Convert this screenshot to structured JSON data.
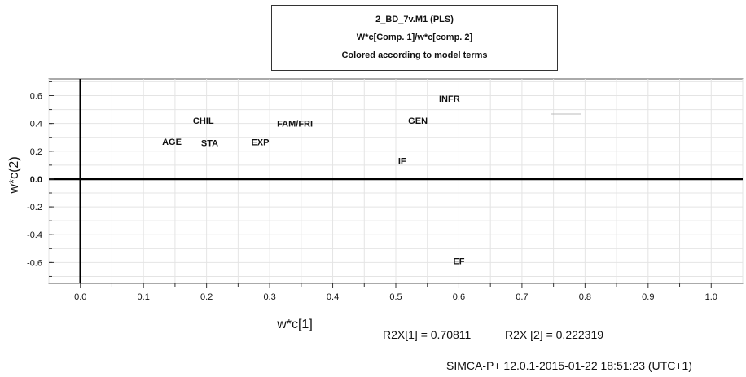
{
  "chart_data": {
    "type": "scatter",
    "title": "2_BD_7v.M1 (PLS)",
    "subtitle": "W*c[Comp. 1]/w*c[comp. 2]",
    "subtitle2": "Colored according to model terms",
    "xlabel": "w*c[1]",
    "ylabel": "w*c(2)",
    "xlim": [
      -0.05,
      1.05
    ],
    "ylim": [
      -0.75,
      0.72
    ],
    "x_ticks": [
      "0.0",
      "0.1",
      "0.2",
      "0.3",
      "0.4",
      "0.5",
      "0.6",
      "0.7",
      "0.8",
      "0.9",
      "1.0"
    ],
    "x_tick_values": [
      0.0,
      0.1,
      0.2,
      0.3,
      0.4,
      0.5,
      0.6,
      0.7,
      0.8,
      0.9,
      1.0
    ],
    "y_ticks": [
      "0.6",
      "0.4",
      "0.2",
      "0.0",
      "-0.2",
      "-0.4",
      "-0.6"
    ],
    "y_tick_values": [
      0.6,
      0.4,
      0.2,
      0.0,
      -0.2,
      -0.4,
      -0.6
    ],
    "grid": true,
    "points": [
      {
        "label": "AGE",
        "x": 0.145,
        "y": 0.27
      },
      {
        "label": "CHIL",
        "x": 0.195,
        "y": 0.42
      },
      {
        "label": "STA",
        "x": 0.205,
        "y": 0.26
      },
      {
        "label": "EXP",
        "x": 0.285,
        "y": 0.265
      },
      {
        "label": "FAM/FRI",
        "x": 0.34,
        "y": 0.4
      },
      {
        "label": "GEN",
        "x": 0.535,
        "y": 0.42
      },
      {
        "label": "INFR",
        "x": 0.585,
        "y": 0.58
      },
      {
        "label": "IF",
        "x": 0.51,
        "y": 0.13
      },
      {
        "label": "EF",
        "x": 0.6,
        "y": -0.59
      }
    ]
  },
  "footer": {
    "r2x1": "R2X[1] = 0.70811",
    "r2x2": "R2X [2] = 0.222319",
    "software": "SIMCA-P+ 12.0.1-2015-01-22 18:51:23 (UTC+1)"
  }
}
